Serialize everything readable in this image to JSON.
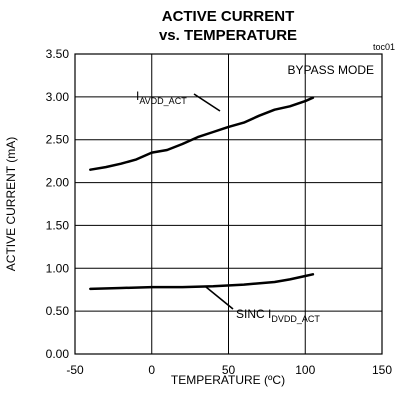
{
  "chart_data": {
    "type": "line",
    "title_line1": "ACTIVE CURRENT",
    "title_line2": "vs. TEMPERATURE",
    "figure_id": "toc01",
    "mode_label": "BYPASS MODE",
    "xlabel": "TEMPERATURE (ºC)",
    "ylabel": "ACTIVE CURRENT (mA)",
    "xlim": [
      -50,
      150
    ],
    "ylim": [
      0,
      3.5
    ],
    "x_ticks": [
      "-50",
      "0",
      "50",
      "100",
      "150"
    ],
    "y_ticks": [
      "0.00",
      "0.50",
      "1.00",
      "1.50",
      "2.00",
      "2.50",
      "3.00",
      "3.50"
    ],
    "grid": true,
    "series": [
      {
        "label_main": "I",
        "label_sub": "AVDD_ACT",
        "x": [
          -40,
          -30,
          -20,
          -10,
          0,
          10,
          20,
          30,
          40,
          50,
          60,
          70,
          80,
          90,
          100,
          105
        ],
        "values": [
          2.15,
          2.18,
          2.22,
          2.27,
          2.35,
          2.38,
          2.45,
          2.53,
          2.59,
          2.65,
          2.7,
          2.78,
          2.85,
          2.89,
          2.95,
          2.99
        ]
      },
      {
        "label_main": "SINC I",
        "label_sub": "DVDD_ACT",
        "x": [
          -40,
          -20,
          0,
          20,
          40,
          60,
          80,
          90,
          100,
          105
        ],
        "values": [
          0.76,
          0.77,
          0.78,
          0.78,
          0.79,
          0.81,
          0.84,
          0.87,
          0.91,
          0.93
        ]
      }
    ]
  }
}
